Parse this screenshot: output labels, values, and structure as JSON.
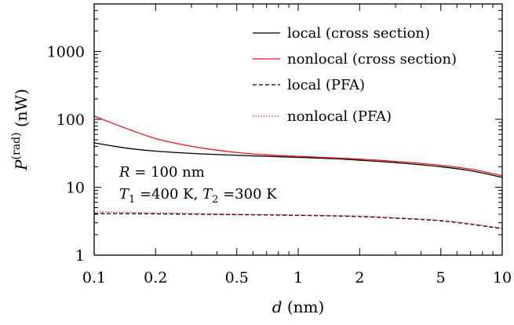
{
  "chart_data": {
    "type": "line",
    "title": "",
    "xscale": "log",
    "yscale": "log",
    "xlim": [
      0.1,
      10
    ],
    "ylim": [
      1,
      5000
    ],
    "grid": false,
    "legend_placement": "top-right",
    "x_ticks": [
      {
        "value": 0.1,
        "label": "0.1"
      },
      {
        "value": 0.2,
        "label": "0.2"
      },
      {
        "value": 0.5,
        "label": "0.5"
      },
      {
        "value": 1,
        "label": "1"
      },
      {
        "value": 2,
        "label": "2"
      },
      {
        "value": 5,
        "label": "5"
      },
      {
        "value": 10,
        "label": "10"
      }
    ],
    "y_ticks": [
      {
        "value": 1,
        "label": "1"
      },
      {
        "value": 10,
        "label": "10"
      },
      {
        "value": 100,
        "label": "100"
      },
      {
        "value": 1000,
        "label": "1000"
      }
    ],
    "xlabel": {
      "var": "d",
      "unit": " (nm)"
    },
    "ylabel": {
      "var": "P",
      "sup": "(rad)",
      "unit": " (nW)"
    },
    "annotations": {
      "radius": {
        "var": "R",
        "text": " = 100 nm"
      },
      "temps": {
        "var1": "T",
        "sub1": "1",
        "mid": " =400 K, ",
        "var2": "T",
        "sub2": "2",
        "end": " =300 K"
      }
    },
    "series": [
      {
        "name": "local (cross section)",
        "color": "#000000",
        "dash": "solid",
        "x": [
          0.1,
          0.12,
          0.15,
          0.2,
          0.3,
          0.5,
          0.7,
          1,
          1.5,
          2,
          3,
          5,
          7,
          10
        ],
        "y": [
          45,
          41,
          37,
          34,
          31.5,
          29.5,
          28.5,
          27.5,
          26.3,
          25,
          23,
          20,
          17.5,
          14
        ]
      },
      {
        "name": "nonlocal (cross section)",
        "color": "#e8141d",
        "dash": "solid",
        "x": [
          0.1,
          0.12,
          0.15,
          0.2,
          0.3,
          0.5,
          0.7,
          1,
          1.5,
          2,
          3,
          5,
          7,
          10
        ],
        "y": [
          112,
          90,
          70,
          52,
          40,
          32.5,
          30,
          28.5,
          27,
          26,
          24,
          21,
          18.5,
          14.8
        ]
      },
      {
        "name": "local (PFA)",
        "color": "#000000",
        "dash": "dashed",
        "x": [
          0.1,
          0.2,
          0.5,
          1,
          2,
          3,
          5,
          7,
          10
        ],
        "y": [
          4.1,
          4.05,
          3.95,
          3.85,
          3.7,
          3.5,
          3.2,
          2.85,
          2.45
        ]
      },
      {
        "name": "nonlocal (PFA)",
        "color": "#e8141d",
        "dash": "dotted",
        "x": [
          0.1,
          0.2,
          0.5,
          1,
          2,
          3,
          5,
          7,
          10
        ],
        "y": [
          4.35,
          4.2,
          4.0,
          3.9,
          3.75,
          3.55,
          3.25,
          2.9,
          2.5
        ]
      }
    ]
  }
}
